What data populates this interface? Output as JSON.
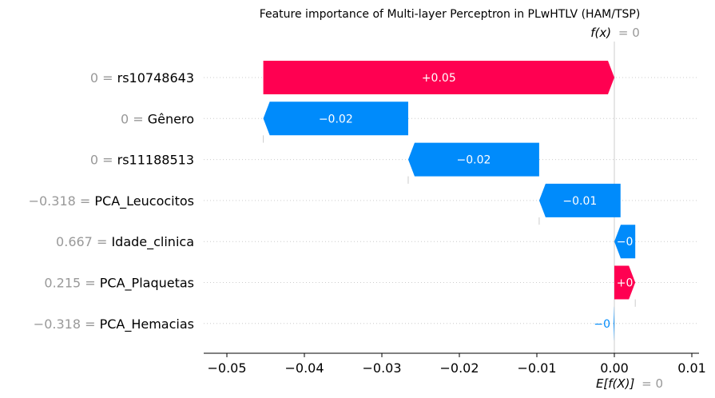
{
  "chart_data": {
    "type": "waterfall",
    "title": "Feature importance of Multi-layer Perceptron in PLwHTLV (HAM/TSP)",
    "fx_label": "f(x)",
    "fx_value": "= 0",
    "efx_label": "E[f(X)]",
    "efx_value": "= 0",
    "xlim": [
      -0.054,
      0.011
    ],
    "ticks": [
      -0.05,
      -0.04,
      -0.03,
      -0.02,
      -0.01,
      0.0,
      0.01
    ],
    "tick_labels": [
      "−0.05",
      "−0.04",
      "−0.03",
      "−0.02",
      "−0.01",
      "0.00",
      "0.01"
    ],
    "base_value": 0.0,
    "features": [
      {
        "value_label": "0 =",
        "name": "rs10748643",
        "contribution": 0.0453,
        "label": "+0.05",
        "start": -0.0453,
        "end": 0.0
      },
      {
        "value_label": "0 =",
        "name": "Gênero",
        "contribution": -0.0187,
        "label": "−0.02",
        "start": -0.0266,
        "end": -0.0453
      },
      {
        "value_label": "0 =",
        "name": "rs11188513",
        "contribution": -0.0169,
        "label": "−0.02",
        "start": -0.0097,
        "end": -0.0266
      },
      {
        "value_label": "−0.318 =",
        "name": "PCA_Leucocitos",
        "contribution": -0.0105,
        "label": "−0.01",
        "start": 0.0008,
        "end": -0.0097
      },
      {
        "value_label": "0.667 =",
        "name": "Idade_clinica",
        "contribution": -0.0027,
        "label": "−0",
        "start": 0.0027,
        "end": 0.0
      },
      {
        "value_label": "0.215 =",
        "name": "PCA_Plaquetas",
        "contribution": 0.0027,
        "label": "+0",
        "start": 0.0,
        "end": 0.0027
      },
      {
        "value_label": "−0.318 =",
        "name": "PCA_Hemacias",
        "contribution": -0.0001,
        "label": "−0",
        "start": 0.0,
        "end": -0.0001
      }
    ],
    "colors": {
      "positive": "#ff0051",
      "negative": "#008bfb",
      "muted": "#999999",
      "text": "#000000",
      "grid": "#cccccc"
    }
  }
}
